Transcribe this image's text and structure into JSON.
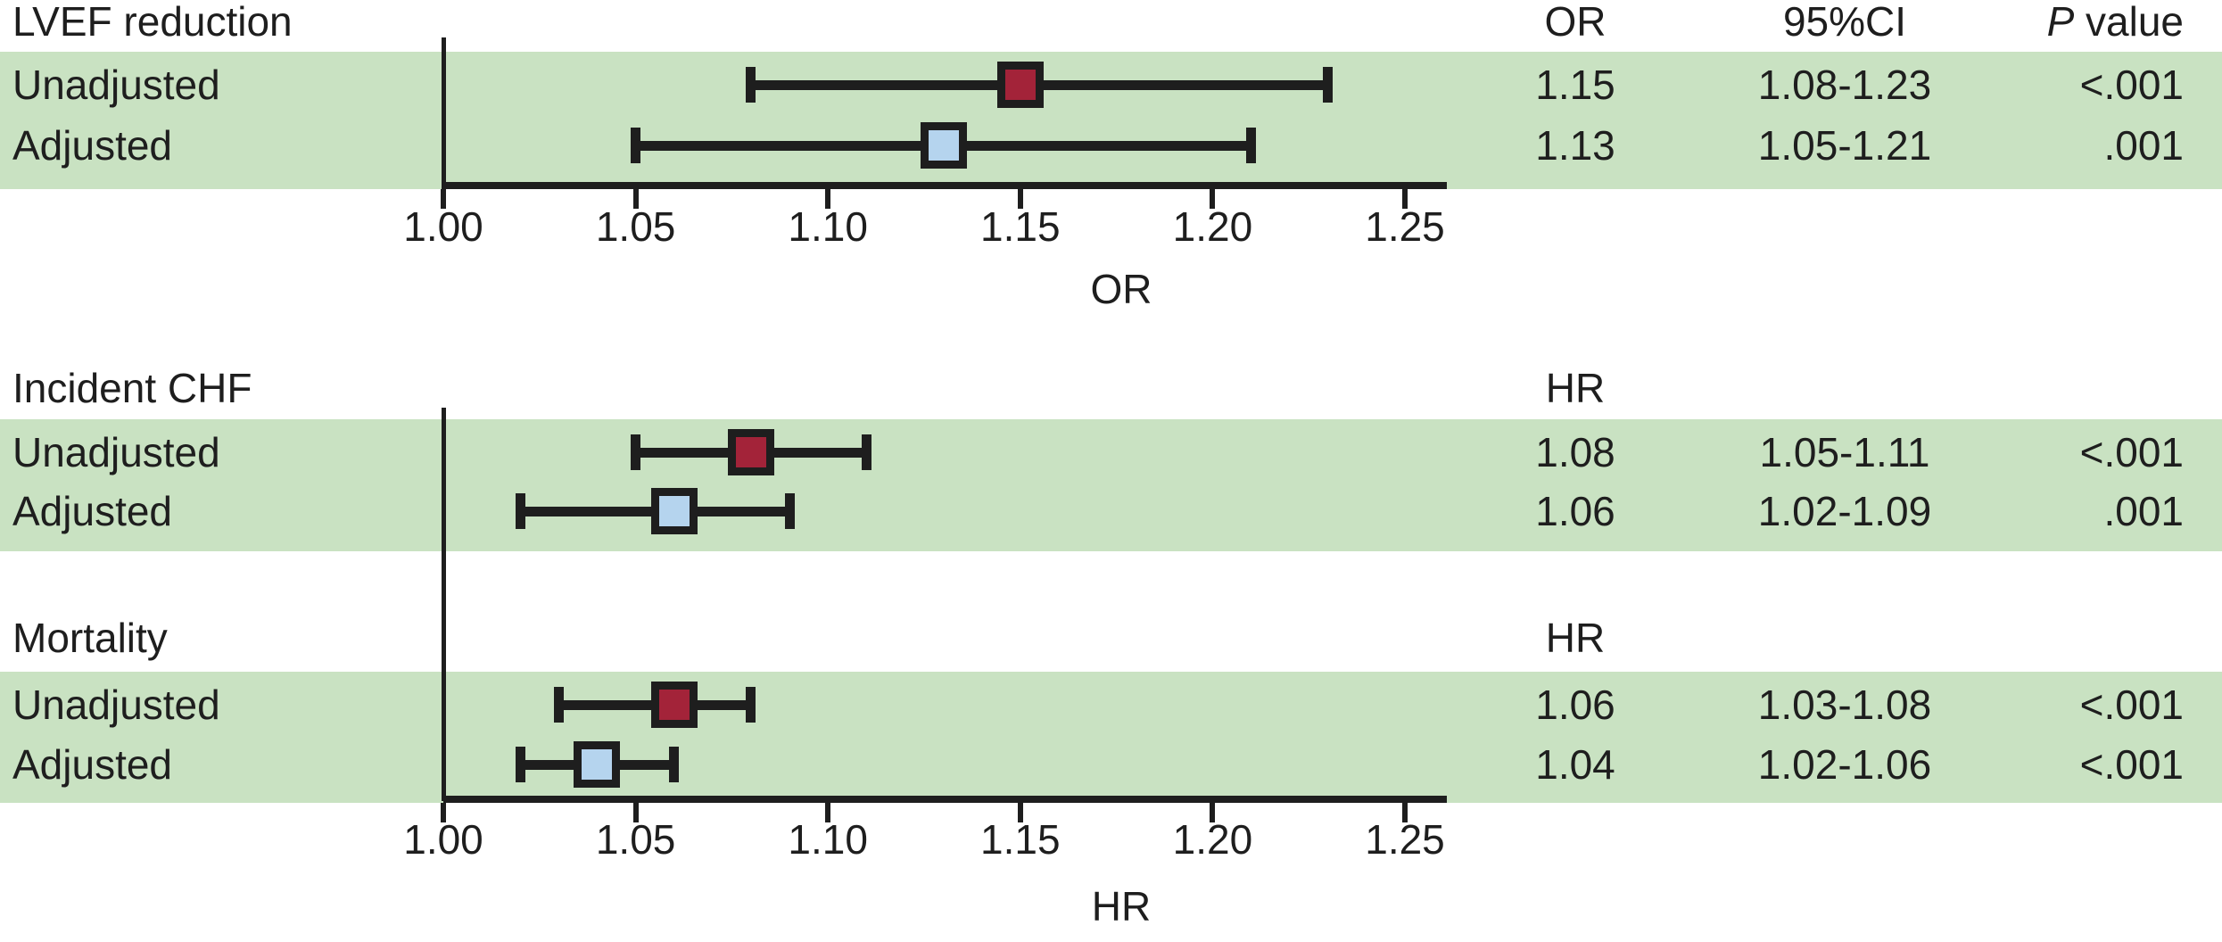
{
  "figure": {
    "colors": {
      "row_band": "#c9e2c2",
      "unadjusted_marker": "#a32339",
      "adjusted_marker": "#b5d4ee",
      "line": "#1e1e1e",
      "background": "#ffffff"
    }
  },
  "chart_data": [
    {
      "type": "forest",
      "panel_title": "LVEF reduction",
      "effect_measure": "OR",
      "column_headers": {
        "effect": "OR",
        "ci": "95%CI",
        "p_italic": "P",
        "p_rest": " value"
      },
      "show_ci_p_headers": true,
      "axis": true,
      "xlabel": "OR",
      "xlim": [
        1.0,
        1.26
      ],
      "ticks": [
        1.0,
        1.05,
        1.1,
        1.15,
        1.2,
        1.25
      ],
      "tick_labels": [
        "1.00",
        "1.05",
        "1.10",
        "1.15",
        "1.20",
        "1.25"
      ],
      "rows": [
        {
          "label": "Unadjusted",
          "group": "unadjusted",
          "estimate": 1.15,
          "ci_low": 1.08,
          "ci_high": 1.23,
          "estimate_text": "1.15",
          "ci_text": "1.08-1.23",
          "p_text": "<.001"
        },
        {
          "label": "Adjusted",
          "group": "adjusted",
          "estimate": 1.13,
          "ci_low": 1.05,
          "ci_high": 1.21,
          "estimate_text": "1.13",
          "ci_text": "1.05-1.21",
          "p_text": ".001"
        }
      ]
    },
    {
      "type": "forest",
      "panel_title": "Incident CHF",
      "effect_measure": "HR",
      "column_headers": {
        "effect": "HR",
        "ci": "",
        "p_italic": "",
        "p_rest": ""
      },
      "show_ci_p_headers": false,
      "axis": false,
      "xlabel": "",
      "xlim": [
        1.0,
        1.26
      ],
      "ticks": [
        1.0,
        1.05,
        1.1,
        1.15,
        1.2,
        1.25
      ],
      "tick_labels": [
        "1.00",
        "1.05",
        "1.10",
        "1.15",
        "1.20",
        "1.25"
      ],
      "rows": [
        {
          "label": "Unadjusted",
          "group": "unadjusted",
          "estimate": 1.08,
          "ci_low": 1.05,
          "ci_high": 1.11,
          "estimate_text": "1.08",
          "ci_text": "1.05-1.11",
          "p_text": "<.001"
        },
        {
          "label": "Adjusted",
          "group": "adjusted",
          "estimate": 1.06,
          "ci_low": 1.02,
          "ci_high": 1.09,
          "estimate_text": "1.06",
          "ci_text": "1.02-1.09",
          "p_text": ".001"
        }
      ]
    },
    {
      "type": "forest",
      "panel_title": "Mortality",
      "effect_measure": "HR",
      "column_headers": {
        "effect": "HR",
        "ci": "",
        "p_italic": "",
        "p_rest": ""
      },
      "show_ci_p_headers": false,
      "axis": true,
      "xlabel": "HR",
      "xlim": [
        1.0,
        1.26
      ],
      "ticks": [
        1.0,
        1.05,
        1.1,
        1.15,
        1.2,
        1.25
      ],
      "tick_labels": [
        "1.00",
        "1.05",
        "1.10",
        "1.15",
        "1.20",
        "1.25"
      ],
      "rows": [
        {
          "label": "Unadjusted",
          "group": "unadjusted",
          "estimate": 1.06,
          "ci_low": 1.03,
          "ci_high": 1.08,
          "estimate_text": "1.06",
          "ci_text": "1.03-1.08",
          "p_text": "<.001"
        },
        {
          "label": "Adjusted",
          "group": "adjusted",
          "estimate": 1.04,
          "ci_low": 1.02,
          "ci_high": 1.06,
          "estimate_text": "1.04",
          "ci_text": "1.02-1.06",
          "p_text": "<.001"
        }
      ]
    }
  ]
}
